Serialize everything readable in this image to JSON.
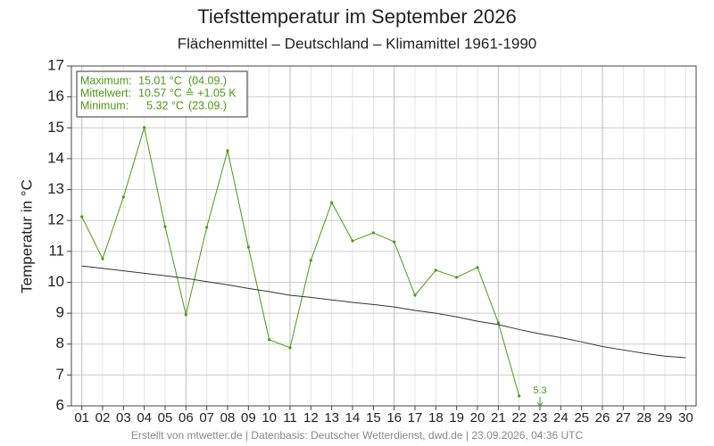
{
  "chart_data": {
    "type": "line",
    "title": "Tiefsttemperatur im September 2026",
    "subtitle": "Flächenmittel – Deutschland – Klimamittel 1961-1990",
    "y_label": "Temperatur in °C",
    "footer": "Erstellt von mtwetter.de | Datenbasis: Deutscher Wetterdienst, dwd.de | 23.09.2026, 04:36 UTC",
    "categories": [
      "01",
      "02",
      "03",
      "04",
      "05",
      "06",
      "07",
      "08",
      "09",
      "10",
      "11",
      "12",
      "13",
      "14",
      "15",
      "16",
      "17",
      "18",
      "19",
      "20",
      "21",
      "22",
      "23",
      "24",
      "25",
      "26",
      "27",
      "28",
      "29",
      "30"
    ],
    "ylim": [
      6,
      17
    ],
    "yticks": [
      6,
      7,
      8,
      9,
      10,
      11,
      12,
      13,
      14,
      15,
      16,
      17
    ],
    "grid": true,
    "series": [
      {
        "name": "Tiefsttemperatur",
        "color": "#4a9a10",
        "values": [
          12.12,
          10.76,
          12.76,
          15.01,
          11.8,
          8.95,
          11.78,
          14.26,
          11.14,
          8.14,
          7.88,
          10.71,
          12.58,
          11.34,
          11.6,
          11.31,
          9.58,
          10.39,
          10.16,
          10.48,
          8.69,
          6.32,
          null,
          null,
          null,
          null,
          null,
          null,
          null,
          null
        ]
      },
      {
        "name": "Klimamittel",
        "color": "#333333",
        "values": [
          10.53,
          10.45,
          10.37,
          10.29,
          10.21,
          10.13,
          10.02,
          9.92,
          9.8,
          9.7,
          9.58,
          9.51,
          9.43,
          9.35,
          9.28,
          9.2,
          9.09,
          9.0,
          8.88,
          8.74,
          8.63,
          8.47,
          8.33,
          8.21,
          8.07,
          7.92,
          7.81,
          7.7,
          7.61,
          7.56
        ]
      }
    ],
    "off_scale": {
      "category": "23",
      "value": 5.32,
      "value_label": "5.3"
    },
    "info_box": [
      [
        "Maximum:",
        "15.01 °C",
        "(04.09.)"
      ],
      [
        "Mittelwert:",
        "10.57 °C ≙ +1.05 K",
        ""
      ],
      [
        "Minimum:",
        "5.32 °C",
        "(23.09.)"
      ]
    ]
  }
}
